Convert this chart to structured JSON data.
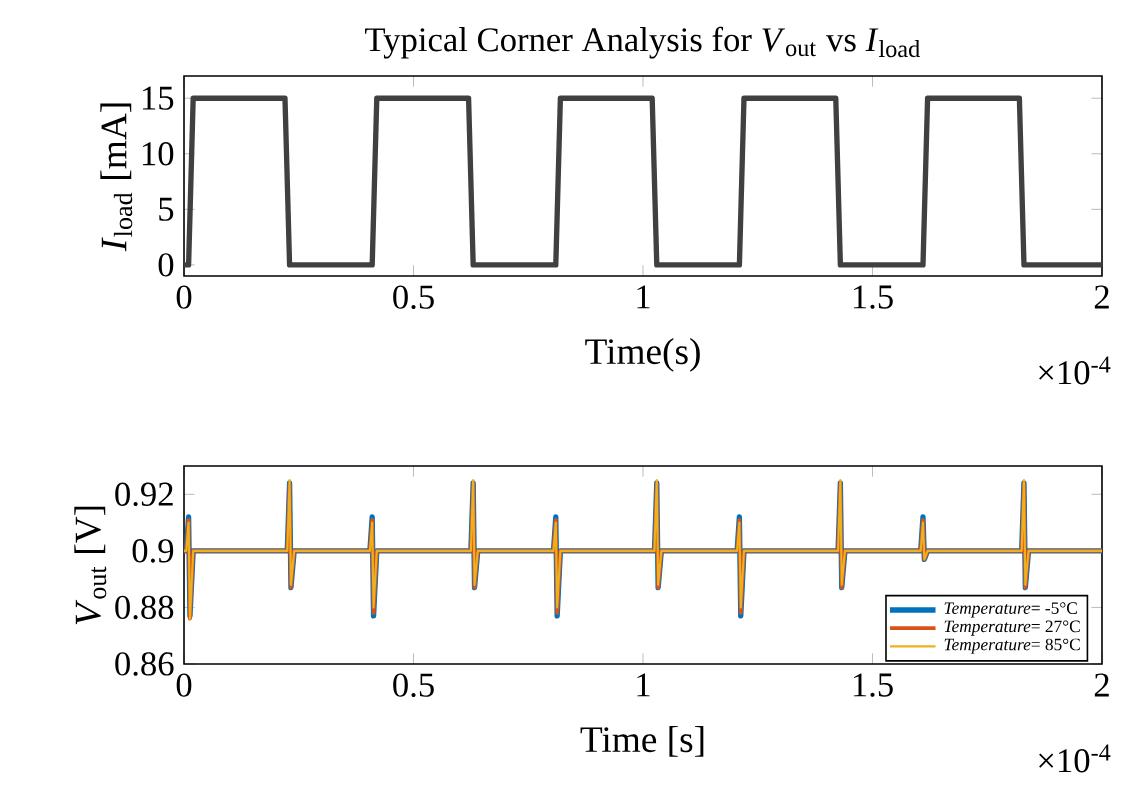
{
  "chart_data": [
    {
      "type": "line",
      "title": "Typical Corner Analysis for *V*$_{out}$ vs *I*$_{load}$",
      "xlabel": "Time(s)",
      "ylabel": "*I*$_{load}$ [mA]",
      "x": [
        0,
        0.01,
        0.02,
        0.22,
        0.23,
        0.41,
        0.42,
        0.62,
        0.63,
        0.81,
        0.82,
        1.02,
        1.03,
        1.21,
        1.22,
        1.42,
        1.43,
        1.61,
        1.62,
        1.82,
        1.83,
        2
      ],
      "series": [
        {
          "color": "#404040",
          "values": [
            0,
            0,
            15,
            15,
            0,
            0,
            15,
            15,
            0,
            0,
            15,
            15,
            0,
            0,
            15,
            15,
            0,
            0,
            15,
            15,
            0,
            0
          ]
        }
      ],
      "xlim": [
        0,
        2
      ],
      "ylim": [
        -1,
        17
      ],
      "xticks": [
        0,
        0.5,
        1,
        1.5,
        2
      ],
      "yticks": [
        0,
        5,
        10,
        15
      ],
      "annotations": [
        "×10$^{-4}$"
      ]
    },
    {
      "type": "line",
      "xlabel": "Time [s]",
      "ylabel": "*V*$_{out}$ [V]",
      "x": [
        0,
        0.005,
        0.01,
        0.013,
        0.02,
        0.225,
        0.23,
        0.233,
        0.24,
        0.405,
        0.41,
        0.413,
        0.42,
        0.625,
        0.63,
        0.633,
        0.64,
        0.805,
        0.81,
        0.813,
        0.82,
        1.025,
        1.03,
        1.033,
        1.04,
        1.205,
        1.21,
        1.213,
        1.22,
        1.425,
        1.43,
        1.433,
        1.44,
        1.605,
        1.61,
        1.613,
        1.62,
        1.825,
        1.83,
        1.833,
        1.84,
        2
      ],
      "series": [
        {
          "name": "*Temperature*= -5°C",
          "color": "#0072bd",
          "values": [
            0.9,
            0.9,
            0.912,
            0.877,
            0.9,
            0.9,
            0.924,
            0.887,
            0.9,
            0.9,
            0.912,
            0.877,
            0.9,
            0.9,
            0.924,
            0.887,
            0.9,
            0.9,
            0.912,
            0.877,
            0.9,
            0.9,
            0.924,
            0.887,
            0.9,
            0.9,
            0.912,
            0.877,
            0.9,
            0.9,
            0.924,
            0.887,
            0.9,
            0.9,
            0.912,
            0.897,
            0.9,
            0.9,
            0.924,
            0.887,
            0.9,
            0.9
          ]
        },
        {
          "name": "*Temperature*= 27°C",
          "color": "#d95319",
          "values": [
            0.9,
            0.9,
            0.911,
            0.876,
            0.9,
            0.9,
            0.924,
            0.887,
            0.9,
            0.9,
            0.911,
            0.878,
            0.9,
            0.9,
            0.924,
            0.887,
            0.9,
            0.9,
            0.911,
            0.878,
            0.9,
            0.9,
            0.924,
            0.887,
            0.9,
            0.9,
            0.911,
            0.878,
            0.9,
            0.9,
            0.924,
            0.887,
            0.9,
            0.9,
            0.911,
            0.897,
            0.9,
            0.9,
            0.924,
            0.887,
            0.9,
            0.9
          ]
        },
        {
          "name": "*Temperature*= 85°C",
          "color": "#edb120",
          "values": [
            0.9,
            0.9,
            0.91,
            0.876,
            0.9,
            0.9,
            0.925,
            0.888,
            0.9,
            0.9,
            0.91,
            0.88,
            0.9,
            0.9,
            0.925,
            0.888,
            0.9,
            0.9,
            0.91,
            0.88,
            0.9,
            0.9,
            0.925,
            0.888,
            0.9,
            0.9,
            0.91,
            0.88,
            0.9,
            0.9,
            0.925,
            0.888,
            0.9,
            0.9,
            0.91,
            0.897,
            0.9,
            0.9,
            0.925,
            0.888,
            0.9,
            0.9
          ]
        }
      ],
      "xlim": [
        0,
        2
      ],
      "ylim": [
        0.86,
        0.93
      ],
      "xticks": [
        0,
        0.5,
        1,
        1.5,
        2
      ],
      "yticks": [
        0.86,
        0.88,
        0.9,
        0.92
      ],
      "legend": "bottom right",
      "annotations": [
        "×10$^{-4}$"
      ]
    }
  ]
}
